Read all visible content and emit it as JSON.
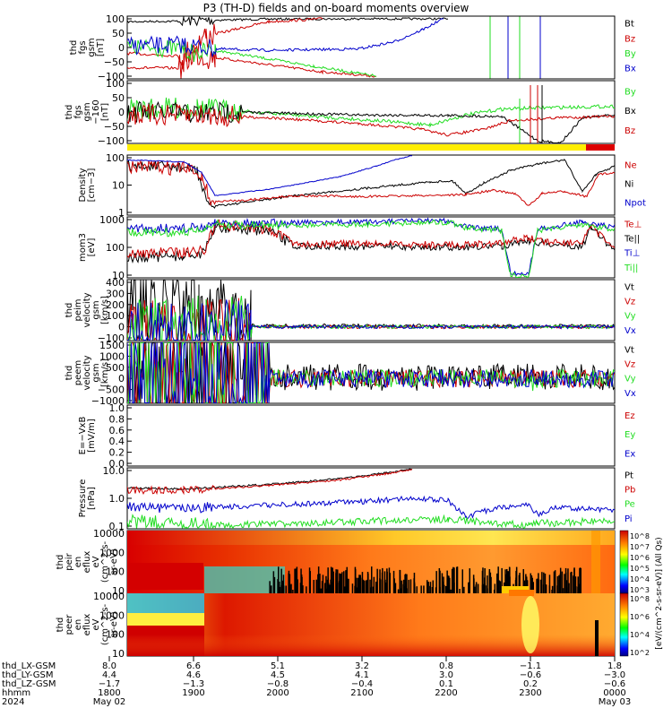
{
  "title": "P3 (TH-D) fields and on-board moments overview",
  "colors": {
    "black": "#000000",
    "red": "#cc0000",
    "green": "#22dd22",
    "blue": "#0000cc",
    "yellow": "#ffee00",
    "bar_red": "#dd0000"
  },
  "chart_data": [
    {
      "type": "line",
      "ylabel": [
        "thd",
        "fgs",
        "gsm",
        "[nT]"
      ],
      "ylim": [
        -100,
        100
      ],
      "ticks": [
        "100",
        "50",
        "0",
        "−50",
        "−100"
      ],
      "series": [
        {
          "name": "Bt",
          "color": "black"
        },
        {
          "name": "Bz",
          "color": "red"
        },
        {
          "name": "By",
          "color": "green"
        },
        {
          "name": "Bx",
          "color": "blue"
        }
      ]
    },
    {
      "type": "line",
      "ylabel": [
        "thd",
        "fgs",
        "gsm",
        "−160",
        "[nT]"
      ],
      "ticks": [
        "100",
        "50",
        "0",
        "−50",
        "−100"
      ],
      "series": [
        {
          "name": "By",
          "color": "green"
        },
        {
          "name": "Bx",
          "color": "black"
        },
        {
          "name": "Bz",
          "color": "red"
        }
      ]
    },
    {
      "type": "line",
      "ylabel": [
        "Density",
        "[cm−3]"
      ],
      "scale": "log",
      "ticks": [
        "100",
        "10",
        "1"
      ],
      "series": [
        {
          "name": "Ne",
          "color": "red"
        },
        {
          "name": "Ni",
          "color": "black"
        },
        {
          "name": "Npot",
          "color": "blue"
        }
      ]
    },
    {
      "type": "line",
      "ylabel": [
        "mom3",
        "[eV]"
      ],
      "scale": "log",
      "ticks": [
        "1000",
        "100",
        "10"
      ],
      "series": [
        {
          "name": "Te⊥",
          "color": "red"
        },
        {
          "name": "Te||",
          "color": "black"
        },
        {
          "name": "Ti⊥",
          "color": "blue"
        },
        {
          "name": "Ti||",
          "color": "green"
        }
      ]
    },
    {
      "type": "line",
      "ylabel": [
        "thd",
        "peim",
        "velocity",
        "gsm",
        "[km/s]"
      ],
      "ticks": [
        "400",
        "300",
        "200",
        "100",
        "0",
        "−100"
      ],
      "series": [
        {
          "name": "Vt",
          "color": "black"
        },
        {
          "name": "Vz",
          "color": "red"
        },
        {
          "name": "Vy",
          "color": "green"
        },
        {
          "name": "Vx",
          "color": "blue"
        }
      ]
    },
    {
      "type": "line",
      "ylabel": [
        "thd",
        "peem",
        "velocity",
        "gsm",
        "[km/s]"
      ],
      "ticks": [
        "1500",
        "1000",
        "500",
        "0",
        "−500",
        "−1000"
      ],
      "series": [
        {
          "name": "Vt",
          "color": "black"
        },
        {
          "name": "Vz",
          "color": "red"
        },
        {
          "name": "Vy",
          "color": "green"
        },
        {
          "name": "Vx",
          "color": "blue"
        }
      ]
    },
    {
      "type": "line",
      "ylabel": [
        "E=−VxB",
        "[mV/m]"
      ],
      "ticks": [
        "1.0",
        "0.8",
        "0.6",
        "0.4",
        "0.2",
        "0.0"
      ],
      "series": [
        {
          "name": "Ez",
          "color": "red"
        },
        {
          "name": "Ey",
          "color": "green"
        },
        {
          "name": "Ex",
          "color": "blue"
        }
      ]
    },
    {
      "type": "line",
      "ylabel": [
        "Pressure",
        "[nPa]"
      ],
      "scale": "log",
      "ticks": [
        "10.0",
        "1.0",
        "0.1"
      ],
      "series": [
        {
          "name": "Pt",
          "color": "black"
        },
        {
          "name": "Pb",
          "color": "red"
        },
        {
          "name": "Pe",
          "color": "green"
        },
        {
          "name": "Pi",
          "color": "blue"
        }
      ]
    },
    {
      "type": "heatmap",
      "ylabel": [
        "thd",
        "peir",
        "en",
        "eflux",
        "eV",
        "(cm^2-s-",
        "sr-eV)"
      ],
      "scale": "log",
      "ticks": [
        "10000",
        "1000",
        "100",
        "10"
      ],
      "colorbar_label": "[eV/(cm^2-s-sr-eV)] (All Qs)",
      "colorbar_ticks": [
        "10^8",
        "10^7",
        "10^6",
        "10^5",
        "10^4",
        "10^3"
      ]
    },
    {
      "type": "heatmap",
      "ylabel": [
        "thd",
        "peer",
        "en",
        "eflux",
        "eV",
        "(cm^2-s-",
        "sr-eV)"
      ],
      "scale": "log",
      "ticks": [
        "10000",
        "1000",
        "100",
        "10"
      ],
      "colorbar_label": "[eV/(cm^2-s-sr-eV)]",
      "colorbar_ticks": [
        "10^8",
        "10^6",
        "10^4",
        "10^2"
      ]
    }
  ],
  "x_axis": {
    "row_labels": [
      "thd_LX-GSM",
      "thd_LY-GSM",
      "thd_LZ-GSM",
      "hhmm",
      "2024"
    ],
    "columns": [
      {
        "lx": "8.0",
        "ly": "4.4",
        "lz": "−1.7",
        "hhmm": "1800",
        "date": "May 02"
      },
      {
        "lx": "6.6",
        "ly": "4.6",
        "lz": "−1.3",
        "hhmm": "1900",
        "date": ""
      },
      {
        "lx": "5.1",
        "ly": "4.5",
        "lz": "−0.8",
        "hhmm": "2000",
        "date": ""
      },
      {
        "lx": "3.2",
        "ly": "4.1",
        "lz": "−0.4",
        "hhmm": "2100",
        "date": ""
      },
      {
        "lx": "0.8",
        "ly": "3.0",
        "lz": "0.1",
        "hhmm": "2200",
        "date": ""
      },
      {
        "lx": "−1.1",
        "ly": "−0.6",
        "lz": "0.2",
        "hhmm": "2300",
        "date": ""
      },
      {
        "lx": "1.8",
        "ly": "−3.0",
        "lz": "−0.6",
        "hhmm": "0000",
        "date": "May 03"
      }
    ]
  }
}
